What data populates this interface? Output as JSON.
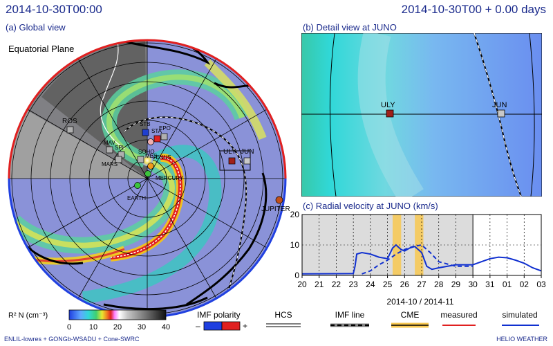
{
  "header": {
    "time_left": "2014-10-30T00:00",
    "time_right": "2014-10-30T00 + 0.00 days"
  },
  "panels": {
    "a_title": "(a) Global view",
    "a_subtitle": "Equatorial Plane",
    "b_title": "(b) Detail view at JUNO",
    "c_title": "(c) Radial velocity at JUNO (km/s)"
  },
  "bodies": [
    {
      "name": "ROS",
      "color": "#b0b0b0"
    },
    {
      "name": "MAV",
      "color": "#b0b0b0"
    },
    {
      "name": "SPI",
      "color": "#b0b0b0"
    },
    {
      "name": "MARS",
      "color": "#b0b0b0"
    },
    {
      "name": "STB",
      "color": "#1f3fd0"
    },
    {
      "name": "STA",
      "color": "#e02020"
    },
    {
      "name": "SOHO",
      "color": "#b0b0b0"
    },
    {
      "name": "EPO",
      "color": "#b0b0b0"
    },
    {
      "name": "MES",
      "color": "#b0b0b0"
    },
    {
      "name": "VENUS",
      "color": "#f29a1a"
    },
    {
      "name": "MERCURY",
      "color": "#3cc43c"
    },
    {
      "name": "EARTH",
      "color": "#3cc43c"
    },
    {
      "name": "ULY",
      "color": "#a0201a"
    },
    {
      "name": "JUN",
      "color": "#c8c8c8"
    },
    {
      "name": "JUPITER",
      "color": "#c0501a"
    }
  ],
  "detail_bodies": [
    "ULY",
    "JUN"
  ],
  "chart_data": {
    "type": "line",
    "title": "(c) Radial velocity at JUNO (km/s)",
    "xlabel": "2014-10 / 2014-11",
    "x_ticks": [
      "20",
      "21",
      "22",
      "23",
      "24",
      "25",
      "26",
      "27",
      "28",
      "29",
      "30",
      "31",
      "01",
      "02",
      "03",
      "04"
    ],
    "ylim": [
      0,
      20
    ],
    "y_ticks": [
      "0",
      "10",
      "20"
    ],
    "current_day_index": 10,
    "cme_bands": [
      [
        25.3,
        25.8
      ],
      [
        26.6,
        27.1
      ]
    ],
    "series": [
      {
        "name": "simulated",
        "style": "solid",
        "color": "#1030d0",
        "x": [
          20,
          23.0,
          23.1,
          23.2,
          23.5,
          24,
          24.5,
          25,
          25.3,
          25.5,
          25.8,
          26,
          26.3,
          26.6,
          27,
          27.3,
          27.6,
          28,
          29,
          30,
          30.5,
          31,
          31.5,
          32,
          32.5,
          33,
          33.5,
          34
        ],
        "y": [
          0.5,
          0.6,
          3,
          7,
          7.5,
          7.0,
          6.0,
          5.5,
          9,
          10,
          8.5,
          8,
          9,
          9.5,
          7.5,
          3,
          2,
          2.5,
          3.5,
          3.5,
          4.5,
          5.5,
          6,
          5.8,
          5,
          4,
          2.5,
          1.5
        ]
      },
      {
        "name": "",
        "style": "dashed",
        "color": "#1030d0",
        "x": [
          23.5,
          24,
          24.5,
          25,
          25.5,
          26,
          26.5,
          27,
          27.5,
          28,
          29,
          30
        ],
        "y": [
          0.5,
          1.5,
          3.5,
          5,
          7,
          8.5,
          9.5,
          10,
          7.5,
          4.5,
          3,
          3
        ]
      }
    ]
  },
  "legend": {
    "colorbar_label": "R² N (cm⁻³)",
    "colorbar_ticks": [
      "0",
      "10",
      "20",
      "30",
      "40"
    ],
    "imf_polarity_label": "IMF polarity",
    "imf_minus": "–",
    "imf_plus": "+",
    "hcs_label": "HCS",
    "imf_line_label": "IMF line",
    "cme_label": "CME",
    "measured_label": "measured",
    "simulated_label": "simulated"
  },
  "footer": {
    "left": "ENLIL-lowres + GONGb-WSADU + Cone-SWRC",
    "right": "HELIO WEATHER"
  }
}
